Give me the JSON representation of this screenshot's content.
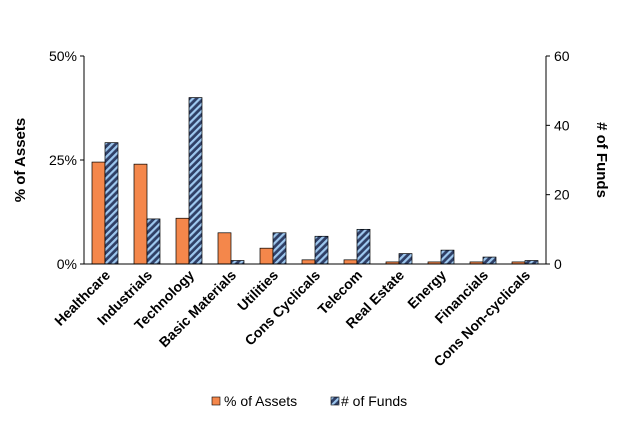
{
  "chart_data": {
    "type": "bar",
    "categories": [
      "Healthcare",
      "Industrials",
      "Technology",
      "Basic Materials",
      "Utilities",
      "Cons Cyclicals",
      "Telecom",
      "Real Estate",
      "Energy",
      "Financials",
      "Cons Non-cyclicals"
    ],
    "series": [
      {
        "name": "% of Assets",
        "axis": "left",
        "color": "#f4874b",
        "values": [
          24.5,
          24.0,
          11.0,
          7.5,
          3.8,
          1.0,
          1.0,
          0.5,
          0.5,
          0.5,
          0.5
        ]
      },
      {
        "name": "# of Funds",
        "axis": "right",
        "color": "#2f3f66",
        "pattern": "light-blue diagonal stripes",
        "values": [
          35,
          13,
          48,
          1,
          9,
          8,
          10,
          3,
          4,
          2,
          1
        ]
      }
    ],
    "ylabel": "% of Assets",
    "y2label": "# of Funds",
    "ylim": [
      0,
      50
    ],
    "y2lim": [
      0,
      60
    ],
    "yticks": [
      "0%",
      "25%",
      "50%"
    ],
    "y2ticks": [
      "0",
      "20",
      "40",
      "60"
    ],
    "grid": false,
    "legend": "bottom-center"
  }
}
